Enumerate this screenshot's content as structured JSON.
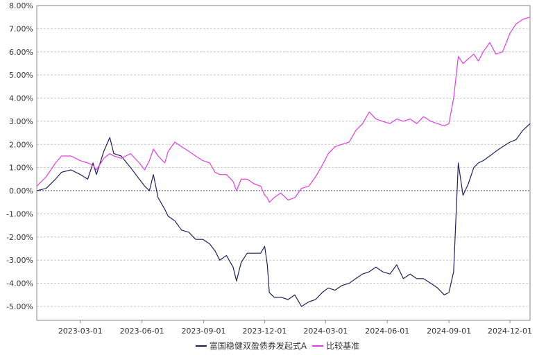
{
  "chart_data": {
    "type": "line",
    "title": "",
    "xlabel": "",
    "ylabel": "",
    "x_range": [
      "2022-12-26",
      "2024-12-31"
    ],
    "ylim": [
      -5.6,
      8.0
    ],
    "y_ticks": [
      8,
      7,
      6,
      5,
      4,
      3,
      2,
      1,
      0,
      -1,
      -2,
      -3,
      -4,
      -5
    ],
    "y_tick_labels": [
      "8.00%",
      "7.00%",
      "6.00%",
      "5.00%",
      "4.00%",
      "3.00%",
      "2.00%",
      "1.00%",
      "0.00%",
      "-1.00%",
      "-2.00%",
      "-3.00%",
      "-4.00%",
      "-5.00%"
    ],
    "x_ticks": [
      "2023-03-01",
      "2023-06-01",
      "2023-09-01",
      "2023-12-01",
      "2024-03-01",
      "2024-06-01",
      "2024-09-01",
      "2024-12-01"
    ],
    "x_tick_labels": [
      "2023-03-01",
      "2023-06-01",
      "2023-09-01",
      "2023-12-01",
      "2024-03-01",
      "2024-06-01",
      "2024-09-01",
      "2024-12-01"
    ],
    "grid": true,
    "zero_line": true,
    "legend_position": "bottom-center",
    "series": [
      {
        "name": "富国稳健双盈债券发起式A",
        "color": "#1f1f5f",
        "x": [
          "2022-12-26",
          "2023-01-09",
          "2023-01-23",
          "2023-02-01",
          "2023-02-15",
          "2023-03-01",
          "2023-03-12",
          "2023-03-20",
          "2023-03-25",
          "2023-04-05",
          "2023-04-14",
          "2023-04-20",
          "2023-05-01",
          "2023-05-15",
          "2023-05-28",
          "2023-06-05",
          "2023-06-12",
          "2023-06-18",
          "2023-06-25",
          "2023-07-05",
          "2023-07-10",
          "2023-07-20",
          "2023-07-30",
          "2023-08-10",
          "2023-08-20",
          "2023-08-31",
          "2023-09-10",
          "2023-09-18",
          "2023-09-25",
          "2023-10-05",
          "2023-10-15",
          "2023-10-20",
          "2023-10-27",
          "2023-11-05",
          "2023-11-15",
          "2023-11-25",
          "2023-12-01",
          "2023-12-05",
          "2023-12-08",
          "2023-12-15",
          "2023-12-25",
          "2024-01-05",
          "2024-01-15",
          "2024-01-25",
          "2024-02-05",
          "2024-02-15",
          "2024-02-25",
          "2024-03-05",
          "2024-03-15",
          "2024-03-25",
          "2024-04-05",
          "2024-04-15",
          "2024-04-25",
          "2024-05-05",
          "2024-05-15",
          "2024-05-25",
          "2024-06-05",
          "2024-06-15",
          "2024-06-25",
          "2024-07-05",
          "2024-07-15",
          "2024-07-25",
          "2024-08-05",
          "2024-08-15",
          "2024-08-25",
          "2024-09-01",
          "2024-09-08",
          "2024-09-15",
          "2024-09-22",
          "2024-09-30",
          "2024-10-08",
          "2024-10-15",
          "2024-10-22",
          "2024-11-01",
          "2024-11-10",
          "2024-11-20",
          "2024-12-01",
          "2024-12-10",
          "2024-12-20",
          "2024-12-31"
        ],
        "values": [
          0.0,
          0.1,
          0.5,
          0.8,
          0.9,
          0.7,
          0.5,
          1.2,
          0.7,
          1.7,
          2.3,
          1.6,
          1.5,
          1.0,
          0.5,
          0.2,
          0.0,
          0.7,
          -0.3,
          -0.8,
          -1.1,
          -1.3,
          -1.7,
          -1.8,
          -2.1,
          -2.1,
          -2.3,
          -2.6,
          -3.0,
          -2.8,
          -3.3,
          -3.9,
          -3.1,
          -2.7,
          -2.7,
          -2.7,
          -2.4,
          -3.2,
          -4.4,
          -4.6,
          -4.6,
          -4.7,
          -4.5,
          -5.0,
          -4.8,
          -4.7,
          -4.4,
          -4.2,
          -4.3,
          -4.1,
          -4.0,
          -3.8,
          -3.6,
          -3.5,
          -3.3,
          -3.5,
          -3.6,
          -3.2,
          -3.8,
          -3.6,
          -3.8,
          -3.8,
          -4.0,
          -4.2,
          -4.5,
          -4.4,
          -3.5,
          1.2,
          -0.2,
          0.3,
          1.0,
          1.2,
          1.3,
          1.5,
          1.7,
          1.9,
          2.1,
          2.2,
          2.6,
          2.9
        ]
      },
      {
        "name": "比较基准",
        "color": "#e23ce2",
        "x": [
          "2022-12-26",
          "2023-01-09",
          "2023-01-23",
          "2023-02-01",
          "2023-02-15",
          "2023-03-01",
          "2023-03-12",
          "2023-03-20",
          "2023-03-25",
          "2023-04-05",
          "2023-04-14",
          "2023-04-20",
          "2023-05-01",
          "2023-05-15",
          "2023-05-28",
          "2023-06-05",
          "2023-06-12",
          "2023-06-18",
          "2023-06-25",
          "2023-07-05",
          "2023-07-10",
          "2023-07-20",
          "2023-07-30",
          "2023-08-10",
          "2023-08-20",
          "2023-08-31",
          "2023-09-10",
          "2023-09-18",
          "2023-09-25",
          "2023-10-05",
          "2023-10-15",
          "2023-10-20",
          "2023-10-27",
          "2023-11-05",
          "2023-11-15",
          "2023-11-25",
          "2023-12-01",
          "2023-12-05",
          "2023-12-08",
          "2023-12-15",
          "2023-12-25",
          "2024-01-05",
          "2024-01-15",
          "2024-01-25",
          "2024-02-05",
          "2024-02-15",
          "2024-02-25",
          "2024-03-05",
          "2024-03-15",
          "2024-03-25",
          "2024-04-05",
          "2024-04-15",
          "2024-04-25",
          "2024-05-05",
          "2024-05-15",
          "2024-05-25",
          "2024-06-05",
          "2024-06-15",
          "2024-06-25",
          "2024-07-05",
          "2024-07-15",
          "2024-07-25",
          "2024-08-05",
          "2024-08-15",
          "2024-08-25",
          "2024-09-01",
          "2024-09-08",
          "2024-09-15",
          "2024-09-22",
          "2024-09-30",
          "2024-10-08",
          "2024-10-15",
          "2024-10-22",
          "2024-11-01",
          "2024-11-10",
          "2024-11-20",
          "2024-12-01",
          "2024-12-10",
          "2024-12-20",
          "2024-12-31"
        ],
        "values": [
          0.2,
          0.6,
          1.2,
          1.5,
          1.5,
          1.3,
          1.2,
          1.1,
          0.9,
          1.4,
          1.6,
          1.5,
          1.4,
          1.6,
          1.2,
          0.9,
          1.3,
          1.8,
          1.5,
          1.2,
          1.7,
          2.1,
          1.9,
          1.7,
          1.5,
          1.3,
          1.2,
          0.8,
          0.7,
          0.7,
          0.4,
          0.0,
          0.5,
          0.5,
          0.3,
          0.2,
          -0.2,
          -0.3,
          -0.5,
          -0.3,
          -0.1,
          -0.4,
          -0.3,
          0.1,
          0.2,
          0.6,
          1.1,
          1.6,
          1.9,
          2.0,
          2.1,
          2.6,
          2.9,
          3.4,
          3.1,
          3.0,
          2.9,
          3.1,
          3.0,
          3.1,
          2.9,
          3.2,
          3.0,
          2.9,
          2.8,
          2.9,
          4.0,
          5.8,
          5.5,
          5.7,
          5.9,
          5.6,
          6.0,
          6.4,
          5.9,
          6.0,
          6.8,
          7.2,
          7.4,
          7.5
        ]
      }
    ]
  }
}
